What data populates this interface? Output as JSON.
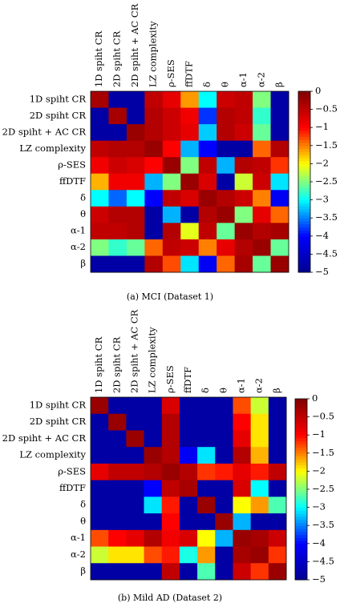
{
  "figure": {
    "panels": [
      {
        "caption": "(a)  MCI (Dataset 1)"
      },
      {
        "caption": "(b)  Mild AD (Dataset 2)"
      }
    ]
  },
  "colormap": {
    "name": "jet",
    "stops": [
      "#00008F",
      "#0000FF",
      "#00FFFF",
      "#FFFF00",
      "#FF0000",
      "#800000"
    ]
  },
  "chart_data": [
    {
      "type": "heatmap",
      "title": "",
      "caption": "(a)  MCI (Dataset 1)",
      "labels": [
        "1D spiht CR",
        "2D spiht CR",
        "2D spiht + AC CR",
        "LZ complexity",
        "ρ-SES",
        "ffDTF",
        "δ",
        "θ",
        "α-1",
        "α-2",
        "β"
      ],
      "colorbar": {
        "min": -5,
        "max": 0,
        "ticks": [
          0,
          -0.5,
          -1,
          -1.5,
          -2,
          -2.5,
          -3,
          -3.5,
          -4,
          -4.5,
          -5
        ]
      },
      "values": [
        [
          -0.3,
          -4.8,
          -4.8,
          -0.5,
          -0.8,
          -1.6,
          -3.0,
          -0.6,
          -0.5,
          -2.5,
          -4.8
        ],
        [
          -4.8,
          -0.3,
          -4.8,
          -0.4,
          -0.6,
          -0.9,
          -3.8,
          -0.4,
          -0.5,
          -2.8,
          -4.8
        ],
        [
          -4.8,
          -4.8,
          -0.2,
          -0.4,
          -0.6,
          -0.8,
          -3.2,
          -0.4,
          -0.6,
          -2.6,
          -4.8
        ],
        [
          -0.5,
          -0.4,
          -0.4,
          -0.2,
          -1.0,
          -3.3,
          -4.0,
          -4.8,
          -4.8,
          -1.4,
          -0.4
        ],
        [
          -0.9,
          -0.6,
          -0.7,
          -1.0,
          -0.2,
          -2.5,
          -0.5,
          -3.3,
          -0.4,
          -0.5,
          -1.2
        ],
        [
          -1.7,
          -0.9,
          -0.9,
          -3.3,
          -2.5,
          -0.2,
          -0.7,
          -4.8,
          -2.2,
          -0.6,
          -3.1
        ],
        [
          -3.0,
          -3.6,
          -3.0,
          -4.0,
          -0.5,
          -0.7,
          -0.2,
          -0.4,
          -0.6,
          -1.5,
          -4.1
        ],
        [
          -0.6,
          -0.4,
          -0.4,
          -4.8,
          -3.3,
          -4.8,
          -0.4,
          -0.2,
          -2.5,
          -0.8,
          -1.4
        ],
        [
          -0.5,
          -0.5,
          -0.4,
          -4.8,
          -0.4,
          -2.1,
          -0.5,
          -2.6,
          -0.2,
          -0.4,
          -0.3
        ],
        [
          -2.5,
          -2.8,
          -2.6,
          -1.4,
          -0.5,
          -0.6,
          -1.5,
          -0.8,
          -0.4,
          -0.2,
          -2.6
        ],
        [
          -4.8,
          -4.8,
          -4.8,
          -0.4,
          -1.3,
          -3.1,
          -4.1,
          -1.4,
          -0.3,
          -2.6,
          -0.2
        ]
      ]
    },
    {
      "type": "heatmap",
      "title": "",
      "caption": "(b)  Mild AD (Dataset 2)",
      "labels": [
        "1D spiht CR",
        "2D spiht CR",
        "2D spiht + AC CR",
        "LZ complexity",
        "ρ-SES",
        "ffDTF",
        "δ",
        "θ",
        "α-1",
        "α-2",
        "β"
      ],
      "colorbar": {
        "min": -5,
        "max": 0,
        "ticks": [
          0,
          -0.5,
          -1,
          -1.5,
          -2,
          -2.5,
          -3,
          -3.5,
          -4,
          -4.5,
          -5
        ]
      },
      "values": [
        [
          -0.2,
          -4.8,
          -4.8,
          -4.8,
          -0.7,
          -4.8,
          -4.8,
          -4.8,
          -1.3,
          -2.2,
          -4.8
        ],
        [
          -4.8,
          -0.2,
          -4.8,
          -4.8,
          -0.4,
          -4.8,
          -4.8,
          -4.8,
          -1.0,
          -1.9,
          -4.8
        ],
        [
          -4.8,
          -4.8,
          -0.2,
          -4.8,
          -0.4,
          -4.8,
          -4.8,
          -4.8,
          -0.8,
          -1.9,
          -4.8
        ],
        [
          -4.8,
          -4.8,
          -4.8,
          -0.2,
          -0.4,
          -4.1,
          -3.1,
          -4.8,
          -0.4,
          -1.7,
          -4.8
        ],
        [
          -0.8,
          -0.5,
          -0.5,
          -0.4,
          -0.2,
          -0.4,
          -1.2,
          -1.1,
          -0.8,
          -1.1,
          -0.5
        ],
        [
          -4.8,
          -4.8,
          -4.8,
          -4.0,
          -0.5,
          -0.3,
          -4.8,
          -4.8,
          -0.7,
          -3.0,
          -4.8
        ],
        [
          -4.8,
          -4.8,
          -4.8,
          -3.1,
          -1.1,
          -4.8,
          -0.2,
          -4.8,
          -2.0,
          -1.6,
          -2.7
        ],
        [
          -4.8,
          -4.8,
          -4.8,
          -4.8,
          -1.0,
          -4.8,
          -4.8,
          -0.2,
          -3.3,
          -4.8,
          -4.8
        ],
        [
          -1.3,
          -1.0,
          -0.8,
          -0.4,
          -0.9,
          -0.7,
          -2.0,
          -3.3,
          -0.2,
          -0.3,
          -0.6
        ],
        [
          -2.2,
          -1.9,
          -1.9,
          -1.3,
          -1.1,
          -2.9,
          -1.6,
          -4.8,
          -0.3,
          -0.2,
          -1.2
        ],
        [
          -4.8,
          -4.8,
          -4.8,
          -4.8,
          -0.5,
          -4.8,
          -2.7,
          -4.8,
          -0.6,
          -1.2,
          -0.2
        ]
      ]
    }
  ]
}
